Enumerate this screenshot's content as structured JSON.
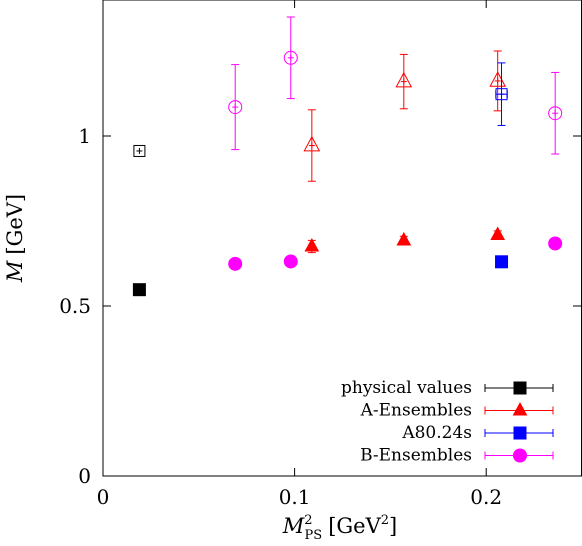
{
  "chart_data": {
    "type": "scatter",
    "xlabel": {
      "base": "M",
      "sup": "2",
      "sub": "PS",
      "unit": "[GeV",
      "unit_sup": "2",
      "unit_close": "]"
    },
    "ylabel": {
      "base": "M",
      "unit": "[GeV]"
    },
    "xlim": [
      0,
      0.25
    ],
    "ylim": [
      0,
      1.4
    ],
    "xticks": [
      {
        "value": 0,
        "label": "0"
      },
      {
        "value": 0.1,
        "label": "0.1"
      },
      {
        "value": 0.2,
        "label": "0.2"
      }
    ],
    "yticks": [
      {
        "value": 0,
        "label": "0"
      },
      {
        "value": 0.5,
        "label": "0.5"
      },
      {
        "value": 1,
        "label": "1"
      }
    ],
    "grid": false,
    "legend_position": "bottom-right",
    "series": [
      {
        "name": "physical values",
        "color": "#000000",
        "marker": "square",
        "points": [
          {
            "x": 0.019,
            "y": 0.548,
            "filled": true
          },
          {
            "x": 0.019,
            "y": 0.956,
            "filled": false
          }
        ]
      },
      {
        "name": "A-Ensembles",
        "color": "#ff0000",
        "marker": "triangle",
        "points": [
          {
            "x": 0.109,
            "y": 0.675,
            "yerr": 0.018,
            "filled": true
          },
          {
            "x": 0.157,
            "y": 0.693,
            "yerr": 0.012,
            "filled": true
          },
          {
            "x": 0.206,
            "y": 0.709,
            "yerr": 0.012,
            "filled": true
          },
          {
            "x": 0.109,
            "y": 0.972,
            "yerr": 0.105,
            "filled": false
          },
          {
            "x": 0.157,
            "y": 1.16,
            "yerr": 0.08,
            "filled": false
          },
          {
            "x": 0.206,
            "y": 1.162,
            "yerr": 0.088,
            "filled": false
          }
        ]
      },
      {
        "name": "A80.24s",
        "color": "#0000ff",
        "marker": "square",
        "points": [
          {
            "x": 0.208,
            "y": 0.63,
            "filled": true
          },
          {
            "x": 0.208,
            "y": 1.123,
            "yerr": 0.092,
            "xerr": 0.003,
            "filled": false
          }
        ]
      },
      {
        "name": "B-Ensembles",
        "color": "#ff00ff",
        "marker": "circle",
        "points": [
          {
            "x": 0.069,
            "y": 0.624,
            "filled": true
          },
          {
            "x": 0.098,
            "y": 0.631,
            "filled": true
          },
          {
            "x": 0.236,
            "y": 0.684,
            "filled": true
          },
          {
            "x": 0.069,
            "y": 1.085,
            "yerr": 0.125,
            "filled": false
          },
          {
            "x": 0.098,
            "y": 1.23,
            "yerr": 0.12,
            "filled": false
          },
          {
            "x": 0.236,
            "y": 1.067,
            "yerr": 0.12,
            "filled": false
          }
        ]
      }
    ]
  }
}
